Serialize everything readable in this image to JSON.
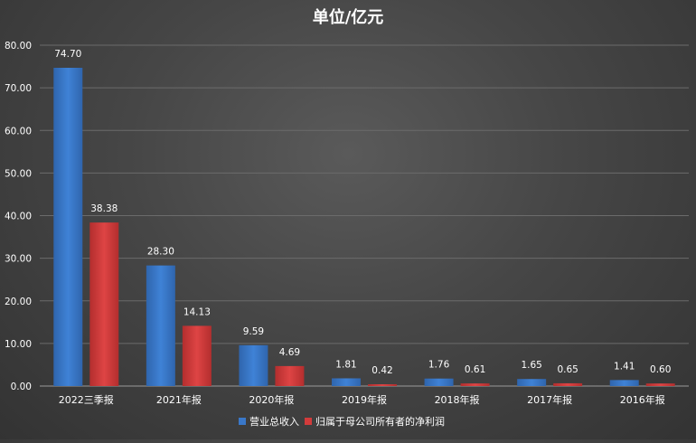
{
  "chart_data": {
    "type": "bar",
    "title": "单位/亿元",
    "xlabel": "",
    "ylabel": "",
    "ylim": [
      0,
      80
    ],
    "yticks": [
      "0.00",
      "10.00",
      "20.00",
      "30.00",
      "40.00",
      "50.00",
      "60.00",
      "70.00",
      "80.00"
    ],
    "grid": true,
    "legend_position": "bottom",
    "categories": [
      "2022三季报",
      "2021年报",
      "2020年报",
      "2019年报",
      "2018年报",
      "2017年报",
      "2016年报"
    ],
    "series": [
      {
        "name": "营业总收入",
        "color": "#3a78c9",
        "values": [
          74.7,
          28.3,
          9.59,
          1.81,
          1.76,
          1.65,
          1.41
        ],
        "labels": [
          "74.70",
          "28.30",
          "9.59",
          "1.81",
          "1.76",
          "1.65",
          "1.41"
        ]
      },
      {
        "name": "归属于母公司所有者的净利润",
        "color": "#d23b3b",
        "values": [
          38.38,
          14.13,
          4.69,
          0.42,
          0.61,
          0.65,
          0.6
        ],
        "labels": [
          "38.38",
          "14.13",
          "4.69",
          "0.42",
          "0.61",
          "0.65",
          "0.60"
        ]
      }
    ]
  }
}
